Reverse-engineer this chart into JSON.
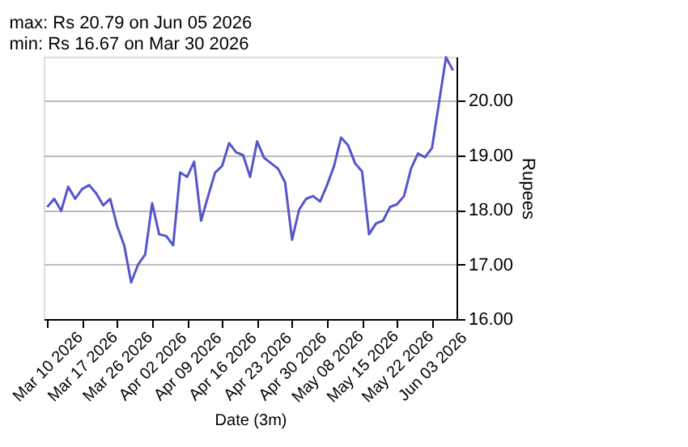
{
  "chart_data": {
    "type": "line",
    "annotations": [
      "max: Rs 20.79 on Jun 05 2026",
      "min: Rs 16.67 on Mar 30 2026"
    ],
    "xlabel": "Date (3m)",
    "ylabel": "Rupees",
    "categories": [
      "Mar 10 2026",
      null,
      null,
      null,
      null,
      "Mar 17 2026",
      null,
      null,
      null,
      null,
      "Mar 26 2026",
      null,
      null,
      null,
      null,
      "Apr 02 2026",
      null,
      null,
      null,
      null,
      "Apr 09 2026",
      null,
      null,
      null,
      null,
      "Apr 16 2026",
      null,
      null,
      null,
      null,
      "Apr 23 2026",
      null,
      null,
      null,
      null,
      "Apr 30 2026",
      null,
      null,
      null,
      null,
      "May 08 2026",
      null,
      null,
      null,
      null,
      "May 15 2026",
      null,
      null,
      null,
      null,
      "May 22 2026",
      null,
      null,
      null,
      null,
      "Jun 03 2026",
      null,
      null,
      null
    ],
    "series": [
      {
        "color": "#5555cc",
        "values": [
          18.05,
          18.2,
          17.98,
          18.42,
          18.2,
          18.38,
          18.45,
          18.3,
          18.08,
          18.2,
          17.7,
          17.35,
          16.67,
          17.0,
          17.18,
          18.12,
          17.55,
          17.52,
          17.35,
          18.68,
          18.6,
          18.88,
          17.8,
          18.25,
          18.68,
          18.8,
          19.22,
          19.05,
          19.0,
          18.6,
          19.25,
          18.95,
          18.85,
          18.75,
          18.5,
          17.45,
          18.0,
          18.2,
          18.25,
          18.15,
          18.45,
          18.8,
          19.32,
          19.18,
          18.85,
          18.7,
          17.55,
          17.75,
          17.8,
          18.05,
          18.1,
          18.25,
          18.75,
          19.03,
          18.96,
          19.13,
          19.96,
          20.79,
          20.55
        ]
      }
    ],
    "ylim": [
      16,
      20.8
    ],
    "yticks": [
      {
        "value": 16,
        "label": "16.00"
      },
      {
        "value": 17,
        "label": "17.00"
      },
      {
        "value": 18,
        "label": "18.00"
      },
      {
        "value": 19,
        "label": "19.00"
      },
      {
        "value": 20,
        "label": "20.00"
      }
    ],
    "grid": "y",
    "legend": false,
    "marker": "none",
    "line_style": "solid"
  }
}
